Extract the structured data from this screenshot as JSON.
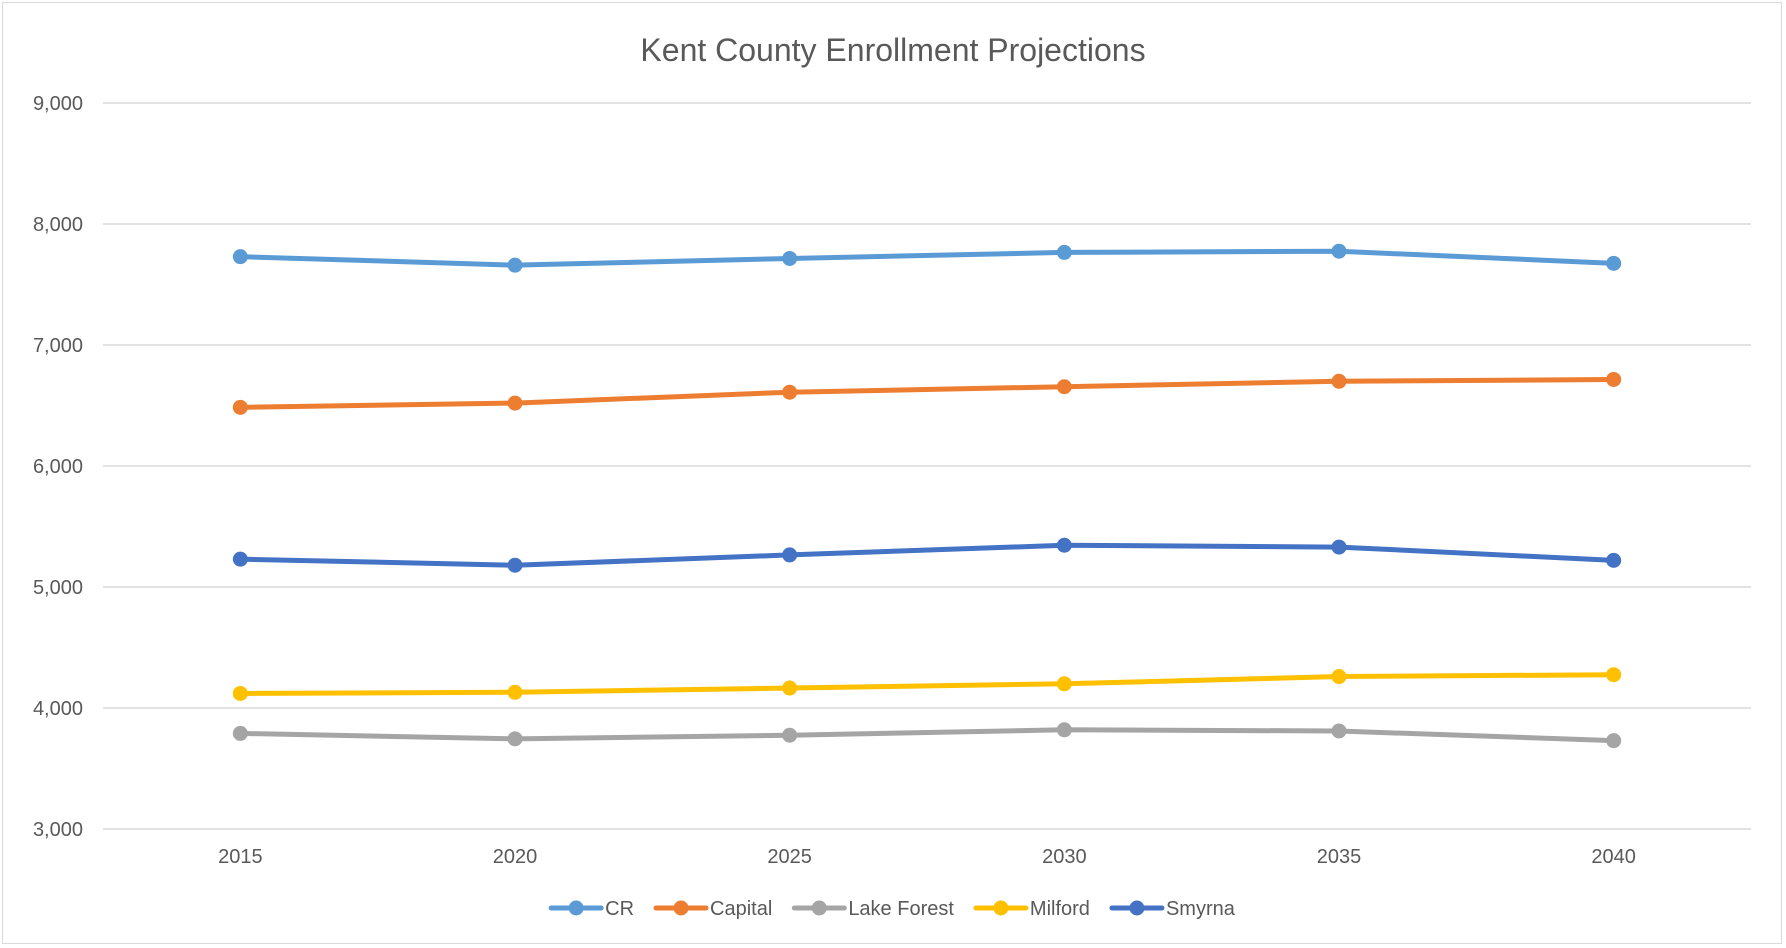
{
  "chart_data": {
    "type": "line",
    "title": "Kent County Enrollment Projections",
    "xlabel": "",
    "ylabel": "",
    "categories": [
      "2015",
      "2020",
      "2025",
      "2030",
      "2035",
      "2040"
    ],
    "ylim": [
      3000,
      9000
    ],
    "yticks": [
      3000,
      4000,
      5000,
      6000,
      7000,
      8000,
      9000
    ],
    "ytick_labels": [
      "3,000",
      "4,000",
      "5,000",
      "6,000",
      "7,000",
      "8,000",
      "9,000"
    ],
    "grid": true,
    "legend_position": "bottom",
    "series": [
      {
        "name": "CR",
        "color": "#5b9bd5",
        "values": [
          7730,
          7660,
          7715,
          7765,
          7775,
          7675
        ]
      },
      {
        "name": "Capital",
        "color": "#ed7d31",
        "values": [
          6485,
          6520,
          6610,
          6655,
          6700,
          6715
        ]
      },
      {
        "name": "Lake Forest",
        "color": "#a5a5a5",
        "values": [
          3790,
          3745,
          3775,
          3820,
          3810,
          3730
        ]
      },
      {
        "name": "Milford",
        "color": "#ffc000",
        "values": [
          4120,
          4130,
          4165,
          4200,
          4260,
          4275
        ]
      },
      {
        "name": "Smyrna",
        "color": "#4472c4",
        "values": [
          5230,
          5180,
          5265,
          5345,
          5330,
          5220
        ]
      }
    ]
  }
}
